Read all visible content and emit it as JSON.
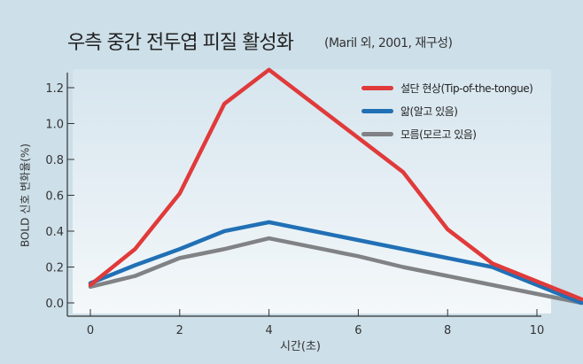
{
  "chart_data": {
    "type": "line",
    "title": "우측 중간 전두엽 피질 활성화",
    "subtitle": "(Maril 외, 2001, 재구성)",
    "xlabel": "시간(초)",
    "ylabel": "BOLD 신호 변화율(%)",
    "xlim": [
      -0.5,
      11.3
    ],
    "ylim": [
      -0.05,
      1.3
    ],
    "xticks": [
      0,
      2,
      4,
      6,
      8,
      10
    ],
    "yticks": [
      "0.0",
      "0.2",
      "0.4",
      "0.6",
      "0.8",
      "1.0",
      "1.2"
    ],
    "grid": false,
    "legend_position": "top-right",
    "x": [
      0,
      1,
      2,
      3,
      4,
      5,
      6,
      7,
      8,
      9,
      10,
      11
    ],
    "series": [
      {
        "name": "설단 현상(Tip-of-the-tongue)",
        "color": "#e03a3a",
        "values": [
          0.1,
          0.3,
          0.61,
          1.11,
          1.3,
          1.11,
          0.92,
          0.73,
          0.41,
          0.22,
          0.12,
          0.02
        ]
      },
      {
        "name": "앎(알고 있음)",
        "color": "#2170b5",
        "values": [
          0.11,
          0.21,
          0.3,
          0.4,
          0.45,
          0.4,
          0.35,
          0.3,
          0.25,
          0.2,
          0.1,
          0.0
        ]
      },
      {
        "name": "모름(모르고 있음)",
        "color": "#808285",
        "values": [
          0.09,
          0.15,
          0.25,
          0.3,
          0.36,
          0.31,
          0.26,
          0.2,
          0.15,
          0.1,
          0.05,
          0.0
        ]
      }
    ]
  }
}
